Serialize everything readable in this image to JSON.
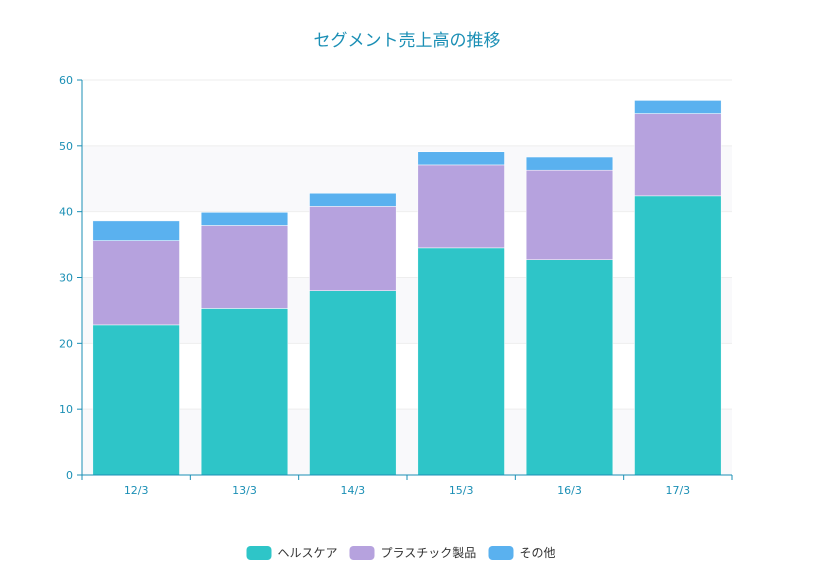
{
  "chart_data": {
    "type": "bar",
    "stacked": true,
    "title": "セグメント売上高の推移",
    "xlabel": "",
    "ylabel": "",
    "categories": [
      "12/3",
      "13/3",
      "14/3",
      "15/3",
      "16/3",
      "17/3"
    ],
    "series": [
      {
        "name": "ヘルスケア",
        "color": "#2ec5c8",
        "values": [
          22.8,
          25.3,
          28.0,
          34.5,
          32.7,
          42.4
        ]
      },
      {
        "name": "プラスチック製品",
        "color": "#b6a2de",
        "values": [
          12.8,
          12.6,
          12.8,
          12.6,
          13.6,
          12.5
        ]
      },
      {
        "name": "その他",
        "color": "#5ab1ef",
        "values": [
          3.0,
          2.0,
          2.0,
          2.0,
          2.0,
          2.0
        ]
      }
    ],
    "ylim": [
      0,
      60
    ],
    "yticks": [
      "0",
      "10",
      "20",
      "30",
      "40",
      "50",
      "60"
    ],
    "grid": true,
    "legend_position": "bottom-center"
  }
}
